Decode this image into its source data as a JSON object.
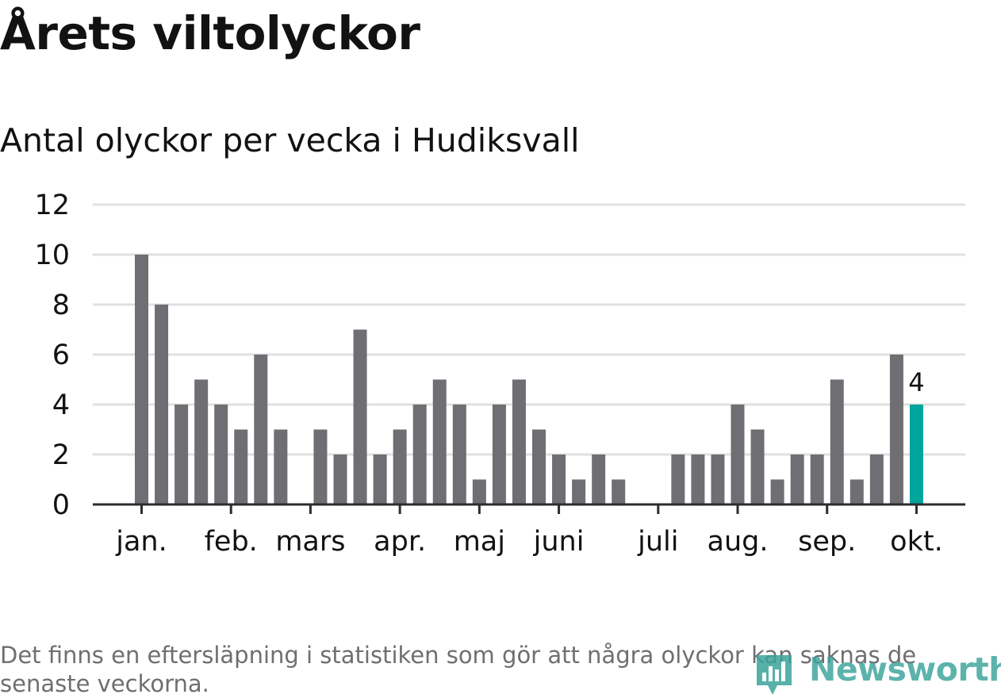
{
  "title": "Årets viltolyckor",
  "subtitle": "Antal olyckor per vecka i Hudiksvall",
  "footnote": "Det finns en eftersläpning i statistiken som gör att några olyckor kan saknas de senaste veckorna.",
  "logo": {
    "text": "Newsworthy",
    "icon": "bar-chart-pin-icon"
  },
  "colors": {
    "bar": "#6f6e72",
    "highlight": "#00a59b",
    "grid": "#e0e0e0",
    "axis": "#2d2d2d",
    "text": "#121212"
  },
  "chart_data": {
    "type": "bar",
    "title": "Årets viltolyckor",
    "subtitle": "Antal olyckor per vecka i Hudiksvall",
    "xlabel": "",
    "ylabel": "",
    "ylim": [
      0,
      12
    ],
    "yticks": [
      0,
      2,
      4,
      6,
      8,
      10,
      12
    ],
    "grid": true,
    "weeks": [
      1,
      2,
      3,
      4,
      5,
      6,
      7,
      8,
      9,
      10,
      11,
      12,
      13,
      14,
      15,
      16,
      17,
      18,
      19,
      20,
      21,
      22,
      23,
      24,
      25,
      26,
      27,
      28,
      29,
      30,
      31,
      32,
      33,
      34,
      35,
      36,
      37,
      38,
      39,
      40
    ],
    "values": [
      10,
      8,
      4,
      5,
      4,
      3,
      6,
      3,
      0,
      3,
      2,
      7,
      2,
      3,
      4,
      5,
      4,
      1,
      4,
      5,
      3,
      2,
      1,
      2,
      1,
      0,
      0,
      2,
      2,
      2,
      4,
      3,
      1,
      2,
      2,
      5,
      1,
      2,
      6,
      4
    ],
    "highlight_index": 39,
    "highlight_label": "4",
    "month_ticks": [
      {
        "label": "jan.",
        "week": 1
      },
      {
        "label": "feb.",
        "week": 5.5
      },
      {
        "label": "mars",
        "week": 9.5
      },
      {
        "label": "apr.",
        "week": 14
      },
      {
        "label": "maj",
        "week": 18
      },
      {
        "label": "juni",
        "week": 22
      },
      {
        "label": "juli",
        "week": 27
      },
      {
        "label": "aug.",
        "week": 31
      },
      {
        "label": "sep.",
        "week": 35.5
      },
      {
        "label": "okt.",
        "week": 40
      }
    ]
  }
}
